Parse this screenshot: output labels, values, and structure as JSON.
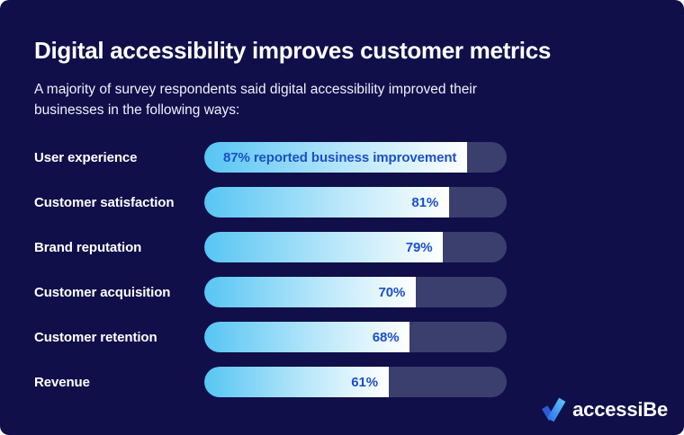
{
  "card": {
    "title": "Digital accessibility improves customer metrics",
    "subtitle_line1": "A majority of survey respondents said digital accessibility improved their",
    "subtitle_line2": "businesses in the following ways:"
  },
  "chart_data": {
    "type": "bar",
    "orientation": "horizontal",
    "title": "Digital accessibility improves customer metrics",
    "subtitle": "A majority of survey respondents said digital accessibility improved their businesses in the following ways:",
    "categories": [
      "User experience",
      "Customer satisfaction",
      "Brand reputation",
      "Customer acquisition",
      "Customer retention",
      "Revenue"
    ],
    "values": [
      87,
      81,
      79,
      70,
      68,
      61
    ],
    "unit": "%",
    "bar_value_labels": [
      "87% reported business improvement",
      "81%",
      "79%",
      "70%",
      "68%",
      "61%"
    ],
    "xlim": [
      0,
      100
    ],
    "grid": false,
    "legend": "none"
  },
  "logo": {
    "text": "accessiBe",
    "icon": "check-icon"
  },
  "colors": {
    "background": "#100f4a",
    "card_text": "#ffffff",
    "bar_track": "#3a3f6e",
    "bar_fill_start": "#57c5f3",
    "bar_fill_mid": "#b9e7fa",
    "bar_fill_end": "#ffffff",
    "bar_value_text": "#1c50c8",
    "logo_check_dark": "#2d5ad5",
    "logo_check_main_bottom": "#2e7ae8",
    "logo_check_main_top": "#5cbcf7"
  }
}
